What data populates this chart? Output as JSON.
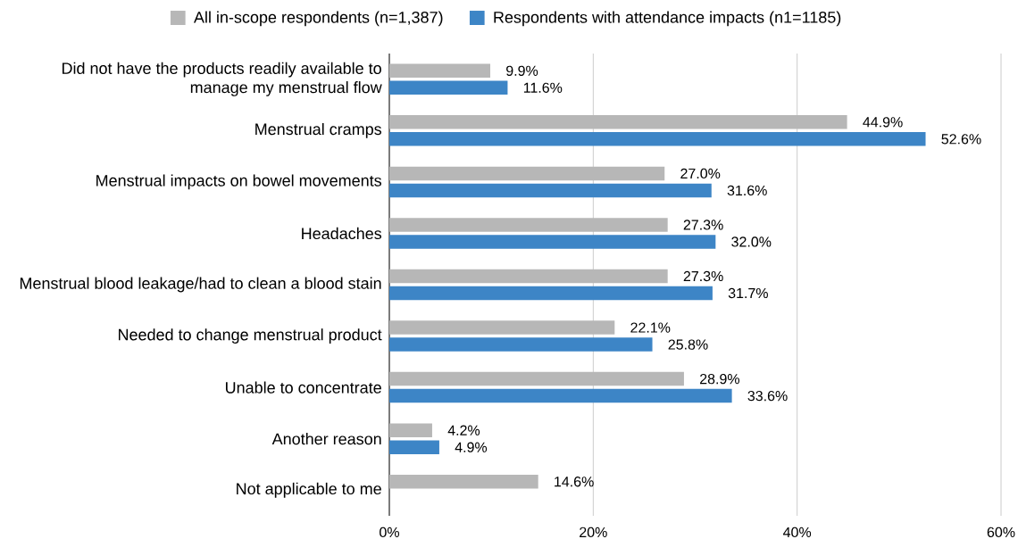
{
  "chart_data": {
    "type": "bar",
    "orientation": "horizontal",
    "categories": [
      "Did not have the products readily available to manage my menstrual flow",
      "Menstrual cramps",
      "Menstrual impacts on bowel movements",
      "Headaches",
      "Menstrual blood leakage/had to clean a blood stain",
      "Needed to change menstrual product",
      "Unable to concentrate",
      "Another reason",
      "Not applicable to me"
    ],
    "series": [
      {
        "name": "All in-scope respondents (n=1,387)",
        "color": "#b7b7b7",
        "values": [
          9.9,
          44.9,
          27.0,
          27.3,
          27.3,
          22.1,
          28.9,
          4.2,
          14.6
        ],
        "value_labels": [
          "9.9%",
          "44.9%",
          "27.0%",
          "27.3%",
          "27.3%",
          "22.1%",
          "28.9%",
          "4.2%",
          "14.6%"
        ]
      },
      {
        "name": "Respondents with attendance impacts (n1=1185)",
        "color": "#3d85c6",
        "values": [
          11.6,
          52.6,
          31.6,
          32.0,
          31.7,
          25.8,
          33.6,
          4.9,
          null
        ],
        "value_labels": [
          "11.6%",
          "52.6%",
          "31.6%",
          "32.0%",
          "31.7%",
          "25.8%",
          "33.6%",
          "4.9%",
          null
        ]
      }
    ],
    "xlim": [
      0,
      60
    ],
    "xticks": [
      {
        "value": 0,
        "label": "0%"
      },
      {
        "value": 20,
        "label": "20%"
      },
      {
        "value": 40,
        "label": "40%"
      },
      {
        "value": 60,
        "label": "60%"
      }
    ],
    "grid": "x",
    "legend": "top"
  }
}
